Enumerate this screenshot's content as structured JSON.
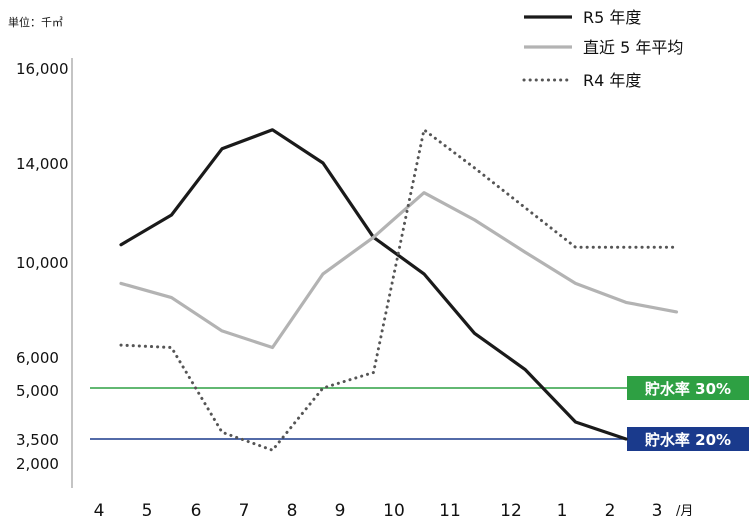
{
  "chart_data": {
    "type": "line",
    "unit_label": "単位：千㎥",
    "x_suffix": "/月",
    "categories": [
      "4",
      "5",
      "6",
      "7",
      "8",
      "9",
      "10",
      "11",
      "12",
      "1",
      "2",
      "3"
    ],
    "y_ticks": [
      "16,000",
      "14,000",
      "10,000",
      "6,000",
      "5,000",
      "3,500",
      "2,000"
    ],
    "series": [
      {
        "name": "R5 年度",
        "color": "#1a1a1a",
        "style": "solid",
        "values": [
          10700,
          11900,
          14300,
          14700,
          14000,
          11000,
          9500,
          7000,
          5600,
          4000,
          3500,
          null
        ]
      },
      {
        "name": "直近 5 年平均",
        "color": "#b3b3b3",
        "style": "solid",
        "values": [
          9100,
          8500,
          7100,
          6400,
          9500,
          11000,
          12800,
          11700,
          10400,
          9100,
          8300,
          7900
        ]
      },
      {
        "name": "R4 年度",
        "color": "#555555",
        "style": "dotted",
        "values": [
          6500,
          6400,
          3700,
          2800,
          5000,
          5500,
          14700,
          13800,
          12200,
          10600,
          10600,
          10600
        ]
      }
    ],
    "reference_lines": [
      {
        "label": "貯水率 30%",
        "value": 5000,
        "color": "#2ea043"
      },
      {
        "label": "貯水率 20%",
        "value": 3500,
        "color": "#1a3a8c"
      }
    ]
  }
}
